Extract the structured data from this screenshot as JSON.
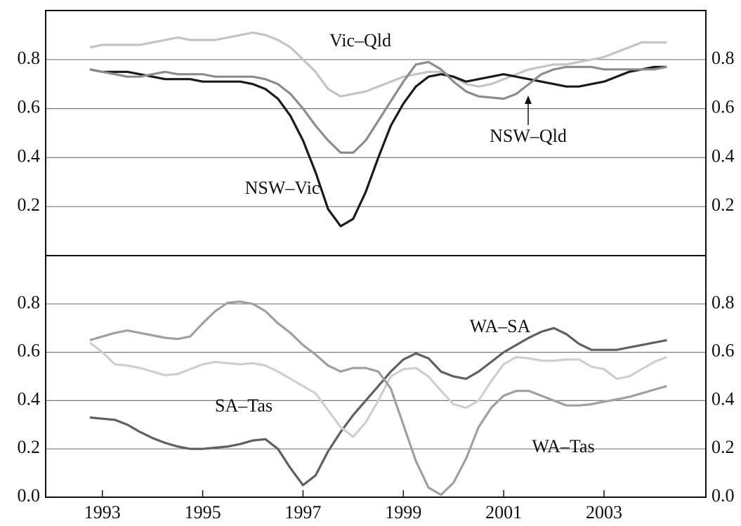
{
  "chart_data": [
    {
      "type": "line",
      "x": [
        1992.75,
        1993,
        1993.25,
        1993.5,
        1993.75,
        1994,
        1994.25,
        1994.5,
        1994.75,
        1995,
        1995.25,
        1995.5,
        1995.75,
        1996,
        1996.25,
        1996.5,
        1996.75,
        1997,
        1997.25,
        1997.5,
        1997.75,
        1998,
        1998.25,
        1998.5,
        1998.75,
        1999,
        1999.25,
        1999.5,
        1999.75,
        2000,
        2000.25,
        2000.5,
        2000.75,
        2001,
        2001.25,
        2001.5,
        2001.75,
        2002,
        2002.25,
        2002.5,
        2002.75,
        2003,
        2003.25,
        2003.5,
        2003.75,
        2004,
        2004.25
      ],
      "xlim": [
        1991.87,
        2005.03
      ],
      "ylim": [
        0,
        1
      ],
      "yticks": [
        0.2,
        0.4,
        0.6,
        0.8
      ],
      "grid": true,
      "series": [
        {
          "name": "Vic–Qld",
          "color": "#c4c4c4",
          "values": [
            0.85,
            0.86,
            0.86,
            0.86,
            0.86,
            0.87,
            0.88,
            0.89,
            0.88,
            0.88,
            0.88,
            0.89,
            0.9,
            0.91,
            0.9,
            0.88,
            0.85,
            0.8,
            0.75,
            0.68,
            0.65,
            0.66,
            0.67,
            0.69,
            0.71,
            0.73,
            0.74,
            0.75,
            0.75,
            0.73,
            0.7,
            0.69,
            0.7,
            0.72,
            0.74,
            0.76,
            0.77,
            0.78,
            0.78,
            0.79,
            0.8,
            0.81,
            0.83,
            0.85,
            0.87,
            0.87,
            0.87
          ]
        },
        {
          "name": "NSW–Vic",
          "color": "#1a1a1a",
          "values": [
            0.76,
            0.75,
            0.75,
            0.75,
            0.74,
            0.73,
            0.72,
            0.72,
            0.72,
            0.71,
            0.71,
            0.71,
            0.71,
            0.7,
            0.68,
            0.64,
            0.57,
            0.47,
            0.34,
            0.19,
            0.12,
            0.15,
            0.26,
            0.4,
            0.53,
            0.62,
            0.69,
            0.73,
            0.74,
            0.73,
            0.71,
            0.72,
            0.73,
            0.74,
            0.73,
            0.72,
            0.71,
            0.7,
            0.69,
            0.69,
            0.7,
            0.71,
            0.73,
            0.75,
            0.76,
            0.77,
            0.77
          ]
        },
        {
          "name": "NSW–Qld",
          "color": "#8c8c8c",
          "values": [
            0.76,
            0.75,
            0.74,
            0.73,
            0.73,
            0.74,
            0.75,
            0.74,
            0.74,
            0.74,
            0.73,
            0.73,
            0.73,
            0.73,
            0.72,
            0.7,
            0.66,
            0.6,
            0.53,
            0.47,
            0.42,
            0.42,
            0.47,
            0.55,
            0.63,
            0.71,
            0.78,
            0.79,
            0.76,
            0.71,
            0.67,
            0.65,
            0.645,
            0.64,
            0.66,
            0.7,
            0.74,
            0.76,
            0.77,
            0.77,
            0.77,
            0.76,
            0.76,
            0.76,
            0.76,
            0.76,
            0.77
          ]
        }
      ]
    },
    {
      "type": "line",
      "x": [
        1992.75,
        1993,
        1993.25,
        1993.5,
        1993.75,
        1994,
        1994.25,
        1994.5,
        1994.75,
        1995,
        1995.25,
        1995.5,
        1995.75,
        1996,
        1996.25,
        1996.5,
        1996.75,
        1997,
        1997.25,
        1997.5,
        1997.75,
        1998,
        1998.25,
        1998.5,
        1998.75,
        1999,
        1999.25,
        1999.5,
        1999.75,
        2000,
        2000.25,
        2000.5,
        2000.75,
        2001,
        2001.25,
        2001.5,
        2001.75,
        2002,
        2002.25,
        2002.5,
        2002.75,
        2003,
        2003.25,
        2003.5,
        2003.75,
        2004,
        2004.25
      ],
      "xlim": [
        1991.87,
        2005.03
      ],
      "xticks": [
        1993,
        1995,
        1997,
        1999,
        2001,
        2003
      ],
      "ylim": [
        0,
        1
      ],
      "yticks": [
        {
          "value": 0,
          "label": "0.0"
        },
        0.2,
        0.4,
        0.6,
        0.8
      ],
      "grid": true,
      "series": [
        {
          "name": "WA–SA",
          "color": "#606060",
          "values": [
            0.33,
            0.325,
            0.32,
            0.3,
            0.27,
            0.245,
            0.225,
            0.21,
            0.2,
            0.2,
            0.205,
            0.21,
            0.22,
            0.235,
            0.24,
            0.2,
            0.12,
            0.05,
            0.09,
            0.19,
            0.27,
            0.34,
            0.4,
            0.46,
            0.52,
            0.57,
            0.595,
            0.575,
            0.52,
            0.5,
            0.49,
            0.52,
            0.56,
            0.6,
            0.63,
            0.66,
            0.685,
            0.7,
            0.675,
            0.635,
            0.61,
            0.61,
            0.61,
            0.62,
            0.63,
            0.64,
            0.65
          ]
        },
        {
          "name": "SA–Tas",
          "color": "#cfcfcf",
          "values": [
            0.64,
            0.6,
            0.55,
            0.545,
            0.535,
            0.52,
            0.505,
            0.51,
            0.53,
            0.55,
            0.56,
            0.555,
            0.55,
            0.555,
            0.545,
            0.52,
            0.49,
            0.46,
            0.43,
            0.36,
            0.29,
            0.25,
            0.31,
            0.4,
            0.5,
            0.53,
            0.535,
            0.5,
            0.44,
            0.385,
            0.37,
            0.4,
            0.48,
            0.55,
            0.58,
            0.575,
            0.565,
            0.565,
            0.57,
            0.57,
            0.54,
            0.53,
            0.49,
            0.5,
            0.53,
            0.56,
            0.58
          ]
        },
        {
          "name": "WA–Tas",
          "color": "#a0a0a0",
          "values": [
            0.65,
            0.665,
            0.68,
            0.69,
            0.68,
            0.67,
            0.66,
            0.655,
            0.665,
            0.72,
            0.77,
            0.805,
            0.81,
            0.8,
            0.77,
            0.72,
            0.68,
            0.63,
            0.59,
            0.545,
            0.52,
            0.535,
            0.535,
            0.52,
            0.45,
            0.3,
            0.15,
            0.04,
            0.01,
            0.06,
            0.16,
            0.29,
            0.37,
            0.42,
            0.44,
            0.44,
            0.42,
            0.4,
            0.38,
            0.38,
            0.385,
            0.395,
            0.405,
            0.415,
            0.43,
            0.445,
            0.46
          ]
        }
      ]
    }
  ]
}
